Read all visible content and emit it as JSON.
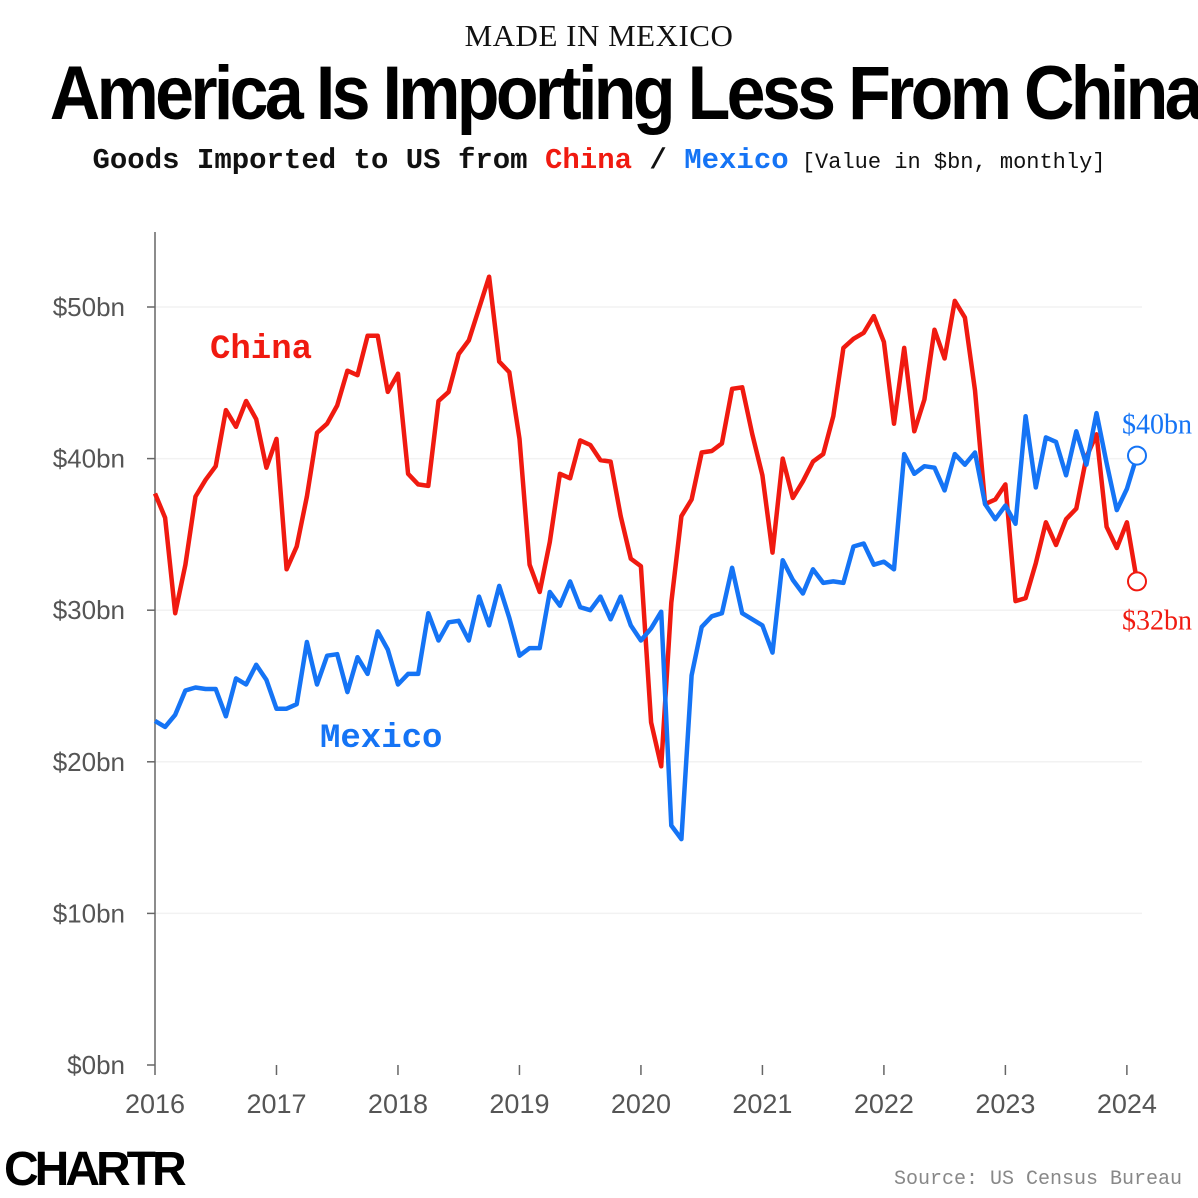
{
  "header": {
    "kicker": "MADE IN MEXICO",
    "title": "America Is Importing Less From China",
    "subtitle_prefix": "Goods Imported to US from ",
    "subtitle_china": "China",
    "subtitle_sep": " / ",
    "subtitle_mexico": "Mexico",
    "subtitle_note": " [Value in $bn, monthly]"
  },
  "footer": {
    "logo": "CHARTR",
    "source": "Source: US Census Bureau"
  },
  "colors": {
    "china": "#f01a10",
    "mexico": "#1574f5"
  },
  "chart_data": {
    "type": "line",
    "title": "America Is Importing Less From China",
    "ylabel": "",
    "xlabel": "",
    "ylim": [
      0,
      55
    ],
    "grid": true,
    "x_start": "2016-01",
    "x_end": "2024-02",
    "x_frequency": "monthly",
    "x_ticks": [
      "2016",
      "2017",
      "2018",
      "2019",
      "2020",
      "2021",
      "2022",
      "2023",
      "2024"
    ],
    "y_ticks": [
      {
        "v": 0,
        "label": "$0bn"
      },
      {
        "v": 10,
        "label": "$10bn"
      },
      {
        "v": 20,
        "label": "$20bn"
      },
      {
        "v": 30,
        "label": "$30bn"
      },
      {
        "v": 40,
        "label": "$40bn"
      },
      {
        "v": 50,
        "label": "$50bn"
      }
    ],
    "series": [
      {
        "name": "China",
        "color": "#f01a10",
        "end_label": "$32bn",
        "values": [
          37.7,
          36.1,
          29.8,
          33.0,
          37.5,
          38.6,
          39.5,
          43.2,
          42.1,
          43.8,
          42.6,
          39.4,
          41.3,
          32.7,
          34.2,
          37.5,
          41.7,
          42.3,
          43.5,
          45.8,
          45.5,
          48.1,
          48.1,
          44.4,
          45.6,
          39.0,
          38.3,
          38.2,
          43.8,
          44.4,
          46.9,
          47.8,
          49.9,
          52.0,
          46.4,
          45.7,
          41.3,
          33.0,
          31.2,
          34.5,
          39.0,
          38.7,
          41.2,
          40.9,
          39.9,
          39.8,
          36.2,
          33.4,
          32.9,
          22.6,
          19.7,
          30.5,
          36.2,
          37.3,
          40.4,
          40.5,
          41.0,
          44.6,
          44.7,
          41.6,
          38.9,
          33.8,
          40.0,
          37.4,
          38.5,
          39.8,
          40.3,
          42.8,
          47.3,
          47.9,
          48.3,
          49.4,
          47.7,
          42.3,
          47.3,
          41.8,
          43.9,
          48.5,
          46.6,
          50.4,
          49.3,
          44.5,
          37.0,
          37.3,
          38.3,
          30.6,
          30.8,
          33.1,
          35.8,
          34.3,
          36.0,
          36.7,
          40.1,
          41.6,
          35.5,
          34.1,
          35.8,
          31.9
        ]
      },
      {
        "name": "Mexico",
        "color": "#1574f5",
        "end_label": "$40bn",
        "values": [
          22.7,
          22.3,
          23.1,
          24.7,
          24.9,
          24.8,
          24.8,
          23.0,
          25.5,
          25.1,
          26.4,
          25.4,
          23.5,
          23.5,
          23.8,
          27.9,
          25.1,
          27.0,
          27.1,
          24.6,
          26.9,
          25.8,
          28.6,
          27.4,
          25.1,
          25.8,
          25.8,
          29.8,
          28.0,
          29.2,
          29.3,
          28.0,
          30.9,
          29.0,
          31.6,
          29.5,
          27.0,
          27.5,
          27.5,
          31.2,
          30.3,
          31.9,
          30.2,
          30.0,
          30.9,
          29.4,
          30.9,
          29.0,
          28.0,
          28.8,
          29.9,
          15.8,
          14.9,
          25.7,
          28.9,
          29.6,
          29.8,
          32.8,
          29.8,
          29.4,
          29.0,
          27.2,
          33.3,
          32.0,
          31.1,
          32.7,
          31.8,
          31.9,
          31.8,
          34.2,
          34.4,
          33.0,
          33.2,
          32.7,
          40.3,
          39.0,
          39.5,
          39.4,
          37.9,
          40.3,
          39.6,
          40.4,
          37.0,
          36.0,
          36.9,
          35.7,
          42.8,
          38.1,
          41.4,
          41.1,
          38.9,
          41.8,
          39.6,
          43.0,
          39.7,
          36.6,
          38.0,
          40.2
        ]
      }
    ]
  }
}
